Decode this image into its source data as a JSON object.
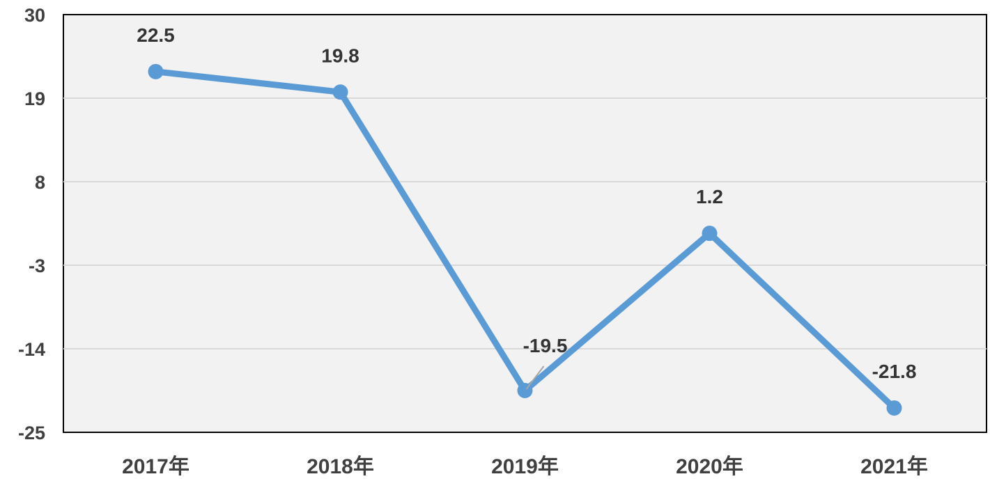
{
  "chart_data": {
    "type": "line",
    "title": "",
    "xlabel": "",
    "ylabel": "",
    "categories": [
      "2017年",
      "2018年",
      "2019年",
      "2020年",
      "2021年"
    ],
    "series": [
      {
        "values": [
          22.5,
          19.8,
          -19.5,
          1.2,
          -21.8
        ],
        "data_labels": [
          "22.5",
          "19.8",
          "-19.5",
          "1.2",
          "-21.8"
        ]
      }
    ],
    "y_ticks": [
      30,
      19,
      8,
      -3,
      -14,
      -25
    ],
    "y_tick_labels": [
      "30",
      "19",
      "8",
      "-3",
      "-14",
      "-25"
    ],
    "ylim": [
      -25,
      30
    ],
    "grid": true,
    "legend": "none",
    "colors": {
      "line": "#5B9BD5",
      "plot_background": "#F2F2F2",
      "gridline": "#D9D9D9",
      "axis": "#000000",
      "tick_text": "#404040",
      "label_text": "#333333",
      "leader_line": "#A6A6A6"
    }
  }
}
